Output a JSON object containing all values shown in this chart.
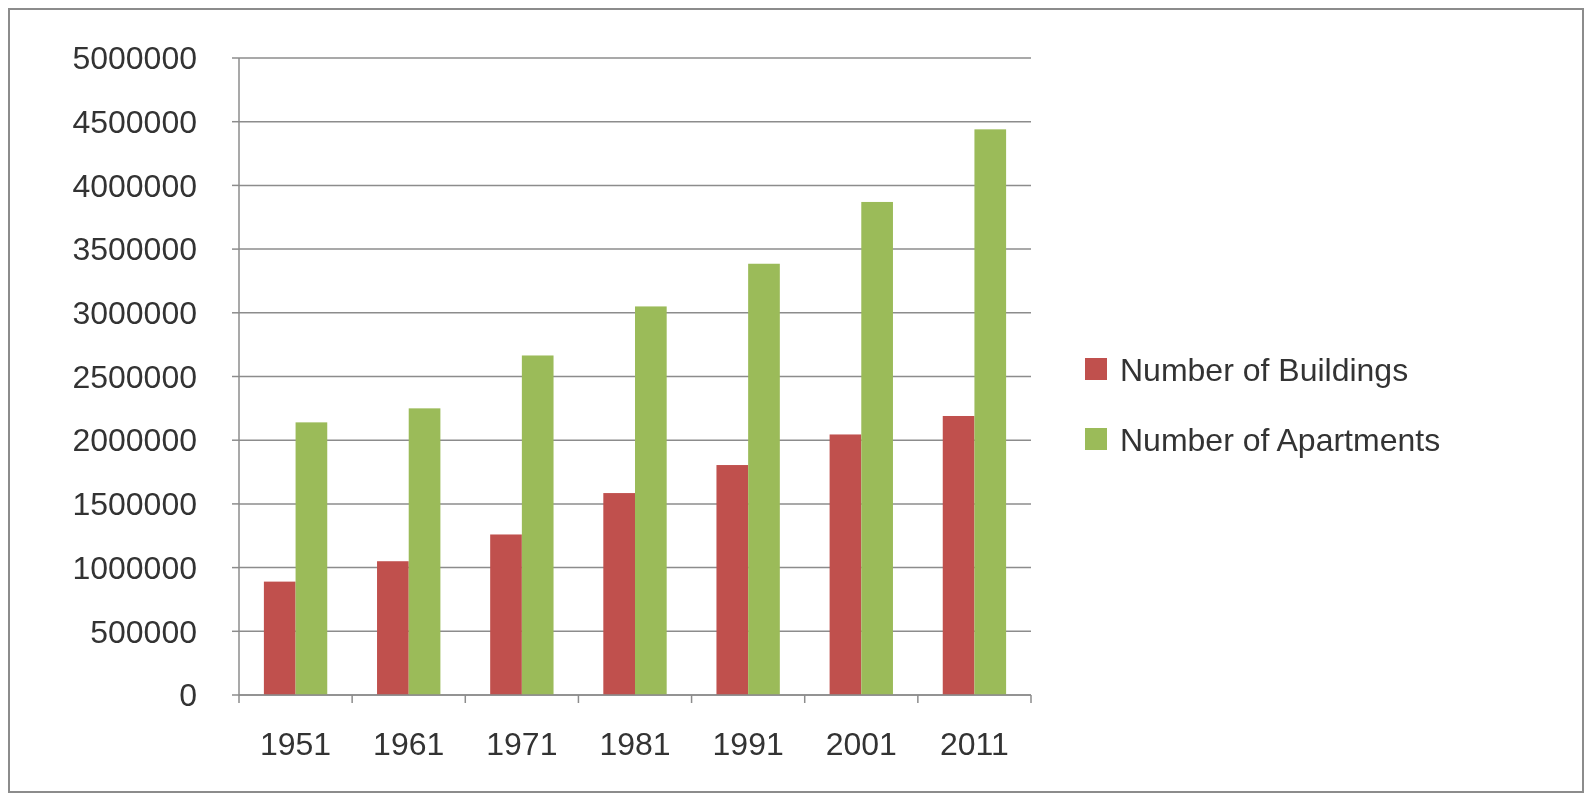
{
  "chart_data": {
    "type": "bar",
    "categories": [
      "1951",
      "1961",
      "1971",
      "1981",
      "1991",
      "2001",
      "2011"
    ],
    "series": [
      {
        "name": "Number of Buildings",
        "color": "#c0504d",
        "values": [
          890000,
          1050000,
          1260000,
          1585000,
          1805000,
          2045000,
          2190000
        ]
      },
      {
        "name": "Number of Apartments",
        "color": "#9bbb59",
        "values": [
          2140000,
          2250000,
          2665000,
          3050000,
          3385000,
          3870000,
          4440000
        ]
      }
    ],
    "ylim": [
      0,
      5000000
    ],
    "yticks": [
      0,
      500000,
      1000000,
      1500000,
      2000000,
      2500000,
      3000000,
      3500000,
      4000000,
      4500000,
      5000000
    ],
    "grid": "y",
    "legend": "right"
  }
}
